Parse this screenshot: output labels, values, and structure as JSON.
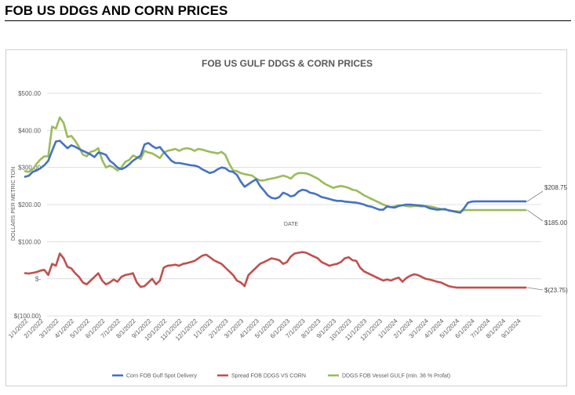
{
  "page": {
    "heading": "FOB US DDGS AND CORN PRICES"
  },
  "chart_data": {
    "type": "line",
    "title": "FOB US GULF DDGS & CORN PRICES",
    "xlabel": "DATE",
    "ylabel": "DOLLARS PER METRIC TON",
    "ylim": [
      -100,
      500
    ],
    "yticks": [
      -100,
      0,
      100,
      200,
      300,
      400,
      500
    ],
    "ytick_labels": [
      "$(100.00)",
      "$-",
      "$100.00",
      "$200.00",
      "$300.00",
      "$400.00",
      "$500.00"
    ],
    "grid": true,
    "legend_position": "bottom",
    "x_tick_labels": [
      "1/1/2022",
      "2/1/2022",
      "3/1/2022",
      "4/1/2022",
      "5/1/2022",
      "6/1/2022",
      "7/1/2022",
      "8/1/2022",
      "9/1/2022",
      "10/1/2022",
      "11/1/2022",
      "12/1/2022",
      "1/1/2023",
      "2/1/2023",
      "3/1/2023",
      "4/1/2023",
      "5/1/2023",
      "6/1/2023",
      "7/1/2023",
      "8/1/2023",
      "9/1/2023",
      "10/1/2023",
      "11/1/2023",
      "12/1/2023",
      "1/1/2024",
      "2/1/2024",
      "3/1/2024",
      "4/1/2024",
      "5/1/2024",
      "6/1/2024",
      "7/1/2024",
      "8/1/2024",
      "9/1/2024"
    ],
    "x_months": [
      0,
      0.25,
      0.5,
      0.75,
      1,
      1.25,
      1.5,
      1.75,
      2,
      2.25,
      2.5,
      2.75,
      3,
      3.25,
      3.5,
      3.75,
      4,
      4.25,
      4.5,
      4.75,
      5,
      5.25,
      5.5,
      5.75,
      6,
      6.25,
      6.5,
      6.75,
      7,
      7.25,
      7.5,
      7.75,
      8,
      8.25,
      8.5,
      8.75,
      9,
      9.25,
      9.5,
      9.75,
      10,
      10.25,
      10.5,
      10.75,
      11,
      11.25,
      11.5,
      11.75,
      12,
      12.25,
      12.5,
      12.75,
      13,
      13.25,
      13.5,
      13.75,
      14,
      14.25,
      14.5,
      14.75,
      15,
      15.25,
      15.5,
      15.75,
      16,
      16.25,
      16.5,
      16.75,
      17,
      17.25,
      17.5,
      17.75,
      18,
      18.25,
      18.5,
      18.75,
      19,
      19.25,
      19.5,
      19.75,
      20,
      20.25,
      20.5,
      20.75,
      21,
      21.25,
      21.5,
      21.75,
      22,
      22.25,
      22.5,
      22.75,
      23,
      23.25,
      23.5,
      23.75,
      24,
      24.25,
      24.5,
      24.75,
      25,
      25.25,
      25.5,
      25.75,
      26,
      26.25,
      26.5,
      26.75,
      27,
      27.25,
      27.5,
      27.75,
      28,
      28.25,
      28.5,
      28.75,
      29,
      29.25,
      29.5,
      29.75,
      30,
      30.25,
      30.5,
      30.75,
      31,
      31.25,
      31.5,
      31.75,
      32,
      32.25,
      32.5,
      32.75,
      33
    ],
    "series": [
      {
        "name": "Corn FOB Gulf Spot Delivery",
        "color": "#4472C4",
        "values": [
          275,
          278,
          288,
          292,
          298,
          306,
          318,
          345,
          370,
          372,
          362,
          352,
          360,
          356,
          350,
          345,
          340,
          335,
          328,
          340,
          338,
          334,
          318,
          310,
          300,
          295,
          300,
          308,
          318,
          325,
          332,
          362,
          366,
          358,
          352,
          355,
          342,
          330,
          318,
          312,
          312,
          310,
          308,
          306,
          305,
          302,
          295,
          290,
          285,
          288,
          295,
          300,
          298,
          290,
          288,
          280,
          262,
          248,
          255,
          262,
          268,
          250,
          238,
          225,
          218,
          216,
          220,
          232,
          228,
          222,
          225,
          235,
          240,
          238,
          232,
          230,
          226,
          220,
          218,
          215,
          212,
          210,
          210,
          208,
          207,
          206,
          205,
          203,
          200,
          196,
          194,
          190,
          186,
          186,
          195,
          193,
          192,
          196,
          198,
          200,
          200,
          199,
          198,
          197,
          195,
          190,
          188,
          186,
          187,
          188,
          184,
          182,
          180,
          178,
          190,
          205,
          208,
          208.75,
          208.75,
          208.75,
          208.75,
          208.75,
          208.75,
          208.75,
          208.75,
          208.75,
          208.75,
          208.75,
          208.75,
          208.75,
          208.75,
          208.75,
          208.75
        ]
      },
      {
        "name": "Spread FOB DDGS VS CORN",
        "color": "#C0504D",
        "values": [
          15,
          14,
          16,
          18,
          22,
          24,
          10,
          40,
          35,
          68,
          55,
          32,
          28,
          15,
          5,
          -10,
          -15,
          -5,
          5,
          15,
          -5,
          -15,
          -10,
          -2,
          -8,
          5,
          10,
          12,
          15,
          -10,
          -22,
          -20,
          -10,
          0,
          -15,
          -5,
          30,
          35,
          36,
          38,
          35,
          40,
          42,
          45,
          48,
          55,
          62,
          65,
          58,
          50,
          45,
          40,
          30,
          20,
          10,
          -5,
          -10,
          -20,
          10,
          20,
          30,
          40,
          45,
          50,
          55,
          53,
          50,
          40,
          45,
          60,
          68,
          70,
          72,
          70,
          65,
          60,
          55,
          45,
          40,
          35,
          38,
          40,
          45,
          55,
          58,
          50,
          48,
          30,
          20,
          15,
          10,
          5,
          0,
          -5,
          -2,
          -5,
          0,
          3,
          -8,
          2,
          8,
          12,
          10,
          5,
          0,
          -2,
          -5,
          -8,
          -10,
          -15,
          -20,
          -22,
          -23.75,
          -23.75,
          -23.75,
          -23.75,
          -23.75,
          -23.75,
          -23.75,
          -23.75,
          -23.75,
          -23.75,
          -23.75,
          -23.75,
          -23.75,
          -23.75,
          -23.75,
          -23.75,
          -23.75,
          -23.75,
          -23.75,
          -23.75,
          -23.75
        ]
      },
      {
        "name": "DDGS FOB Vessel GULF  (min. 36 % Profat)",
        "color": "#9BBB59",
        "values": [
          290,
          288,
          295,
          310,
          322,
          330,
          330,
          410,
          405,
          435,
          420,
          382,
          385,
          372,
          355,
          335,
          330,
          342,
          345,
          352,
          320,
          300,
          305,
          300,
          292,
          300,
          315,
          320,
          332,
          328,
          323,
          345,
          340,
          338,
          332,
          325,
          340,
          345,
          347,
          350,
          345,
          350,
          352,
          350,
          345,
          350,
          348,
          345,
          342,
          340,
          338,
          342,
          334,
          310,
          292,
          290,
          285,
          282,
          280,
          278,
          270,
          265,
          265,
          268,
          270,
          272,
          275,
          278,
          275,
          270,
          280,
          285,
          285,
          284,
          280,
          275,
          270,
          262,
          255,
          250,
          245,
          248,
          250,
          248,
          245,
          240,
          238,
          232,
          225,
          220,
          215,
          210,
          205,
          200,
          196,
          193,
          195,
          198,
          198,
          196,
          195,
          196,
          196,
          195,
          196,
          195,
          193,
          190,
          188,
          186,
          185,
          183,
          182,
          181,
          185,
          185,
          185,
          185,
          185,
          185,
          185,
          185,
          185,
          185,
          185,
          185,
          185,
          185,
          185,
          185,
          185,
          185,
          185
        ]
      }
    ],
    "annotations": [
      {
        "label": "$208.75",
        "value": 208.75
      },
      {
        "label": "$185.00",
        "value": 185.0
      },
      {
        "label": "$(23.75)",
        "value": -23.75
      }
    ]
  }
}
